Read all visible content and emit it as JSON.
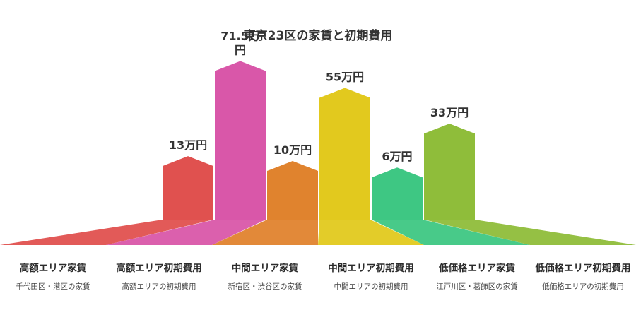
{
  "chart_data": {
    "type": "bar",
    "title": "東京23区の家賃と初期費用",
    "categories": [
      "高額エリア家賃",
      "高額エリア初期費用",
      "中間エリア家賃",
      "中間エリア初期費用",
      "低価格エリア家賃",
      "低価格エリア初期費用"
    ],
    "descriptions": [
      "千代田区・港区の家賃",
      "高額エリアの初期費用",
      "新宿区・渋谷区の家賃",
      "中間エリアの初期費用",
      "江戸川区・葛飾区の家賃",
      "低価格エリアの初期費用"
    ],
    "values": [
      13,
      71.5,
      10,
      55,
      6,
      33
    ],
    "value_labels": [
      "13万円",
      "71.5万円",
      "10万円",
      "55万円",
      "6万円",
      "33万円"
    ],
    "unit": "万円",
    "colors": [
      "#e0514f",
      "#d957a9",
      "#e0832e",
      "#e2c91e",
      "#3ec783",
      "#8fbd3a"
    ]
  }
}
